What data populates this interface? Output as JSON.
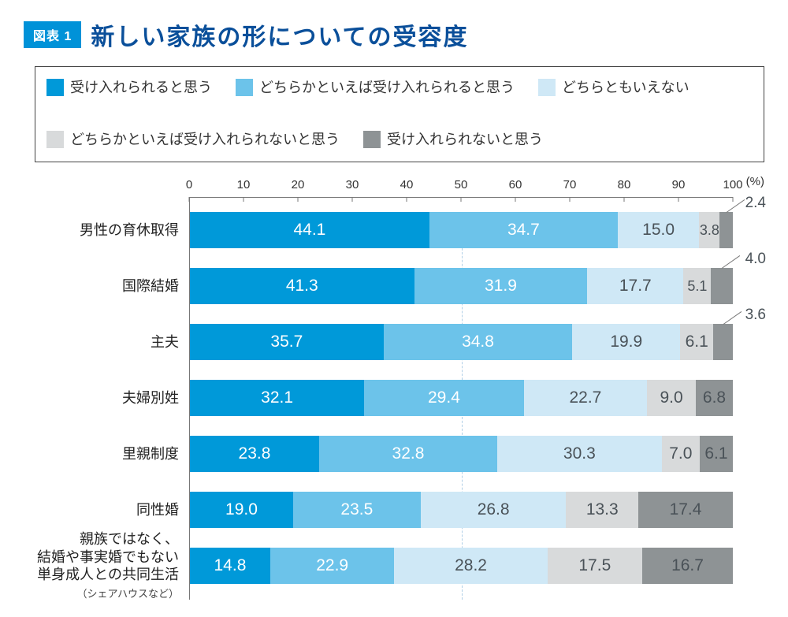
{
  "figure_badge": "図表 1",
  "title": "新しい家族の形についての受容度",
  "legend": [
    {
      "label": "受け入れられると思う",
      "color": "#0099d9"
    },
    {
      "label": "どちらかといえば受け入れられると思う",
      "color": "#6cc3ea"
    },
    {
      "label": "どちらともいえない",
      "color": "#cfe8f6"
    },
    {
      "label": "どちらかといえば受け入れられないと思う",
      "color": "#d8dadb"
    },
    {
      "label": "受け入れられないと思う",
      "color": "#8e9395"
    }
  ],
  "axis": {
    "min": 0,
    "max": 100,
    "step": 10,
    "unit": "(%)",
    "grid_at": 50,
    "grid_color": "#b0cfe6"
  },
  "series_colors": [
    "#0099d9",
    "#6cc3ea",
    "#cfe8f6",
    "#d8dadb",
    "#8e9395"
  ],
  "text_class": [
    "light-text",
    "light-text",
    "dark-text",
    "dark-text",
    "dark-text"
  ],
  "value_fontsize": 21,
  "rows": [
    {
      "label": "男性の育休取得",
      "values": [
        44.1,
        34.7,
        15.0,
        3.8,
        2.4
      ],
      "display": [
        "44.1",
        "34.7",
        "15.0",
        "3.8",
        "2.4"
      ],
      "callout_idx": [
        4
      ]
    },
    {
      "label": "国際結婚",
      "values": [
        41.3,
        31.9,
        17.7,
        5.1,
        4.0
      ],
      "display": [
        "41.3",
        "31.9",
        "17.7",
        "5.1",
        "4.0"
      ],
      "callout_idx": [
        4
      ]
    },
    {
      "label": "主夫",
      "values": [
        35.7,
        34.8,
        19.9,
        6.1,
        3.6
      ],
      "display": [
        "35.7",
        "34.8",
        "19.9",
        "6.1",
        "3.6"
      ],
      "callout_idx": [
        4
      ]
    },
    {
      "label": "夫婦別姓",
      "values": [
        32.1,
        29.4,
        22.7,
        9.0,
        6.8
      ],
      "display": [
        "32.1",
        "29.4",
        "22.7",
        "9.0",
        "6.8"
      ],
      "callout_idx": []
    },
    {
      "label": "里親制度",
      "values": [
        23.8,
        32.8,
        30.3,
        7.0,
        6.1
      ],
      "display": [
        "23.8",
        "32.8",
        "30.3",
        "7.0",
        "6.1"
      ],
      "callout_idx": []
    },
    {
      "label": "同性婚",
      "values": [
        19.0,
        23.5,
        26.8,
        13.3,
        17.4
      ],
      "display": [
        "19.0",
        "23.5",
        "26.8",
        "13.3",
        "17.4"
      ],
      "callout_idx": []
    },
    {
      "label": "親族ではなく、\n結婚や事実婚でもない\n単身成人との共同生活",
      "sublabel": "（シェアハウスなど）",
      "values": [
        14.8,
        22.9,
        28.2,
        17.5,
        16.7
      ],
      "display": [
        "14.8",
        "22.9",
        "28.2",
        "17.5",
        "16.7"
      ],
      "callout_idx": []
    }
  ]
}
